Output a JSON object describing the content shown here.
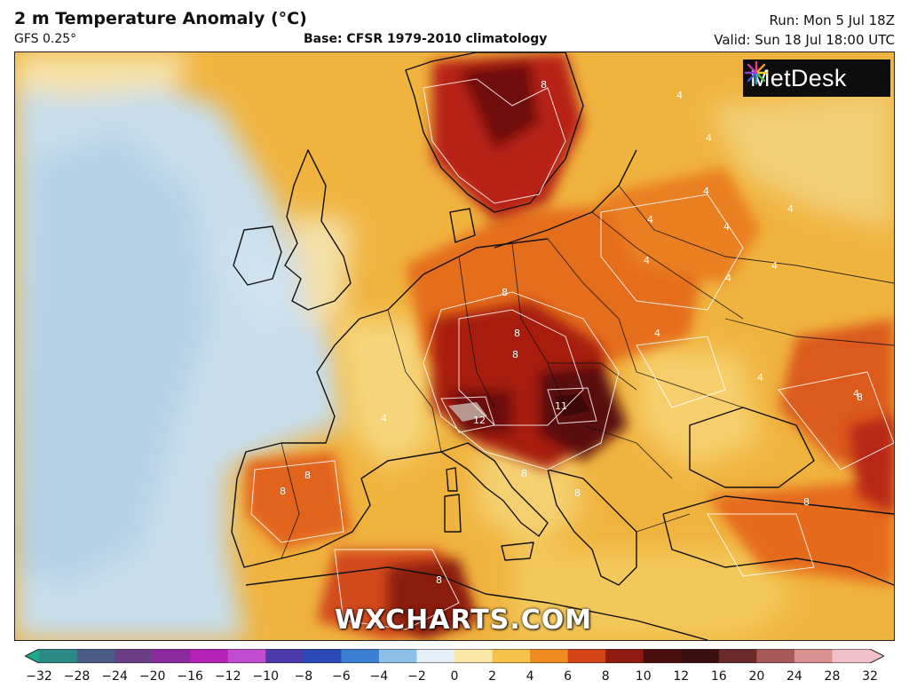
{
  "header": {
    "title": "2 m Temperature Anomaly (°C)",
    "model": "GFS 0.25°",
    "base": "Base: CFSR 1979-2010 climatology",
    "run": "Run: Mon 5 Jul 18Z",
    "valid": "Valid: Sun 18 Jul 18:00 UTC"
  },
  "logo": {
    "text": "MetDesk",
    "icon": "metdesk-burst-icon"
  },
  "watermark": "WXCHARTS.COM",
  "legend": {
    "ticks": [
      "−32",
      "−28",
      "−24",
      "−20",
      "−16",
      "−12",
      "−10",
      "−8",
      "−6",
      "−4",
      "−2",
      "0",
      "2",
      "4",
      "6",
      "8",
      "10",
      "12",
      "16",
      "20",
      "24",
      "28",
      "32"
    ],
    "colors": [
      "#1ea98a",
      "#2b8a86",
      "#4b5d86",
      "#6b3d86",
      "#8a2a9e",
      "#b321b8",
      "#c04cd0",
      "#4c3aa8",
      "#2b4ab8",
      "#3b7fd0",
      "#8cc0e8",
      "#e4eef6",
      "#fbe7a8",
      "#f6c24a",
      "#ef8a1e",
      "#d44416",
      "#8e1a10",
      "#4a0e0c",
      "#3a1010",
      "#6a2a2a",
      "#a85a5a",
      "#d89090",
      "#f0c0c8"
    ]
  },
  "contour_labels": [
    "4",
    "4",
    "4",
    "4",
    "4",
    "4",
    "4",
    "4",
    "4",
    "4",
    "4",
    "4",
    "4",
    "8",
    "8",
    "8",
    "8",
    "8",
    "8",
    "8",
    "8",
    "8",
    "8",
    "8",
    "11",
    "12"
  ]
}
